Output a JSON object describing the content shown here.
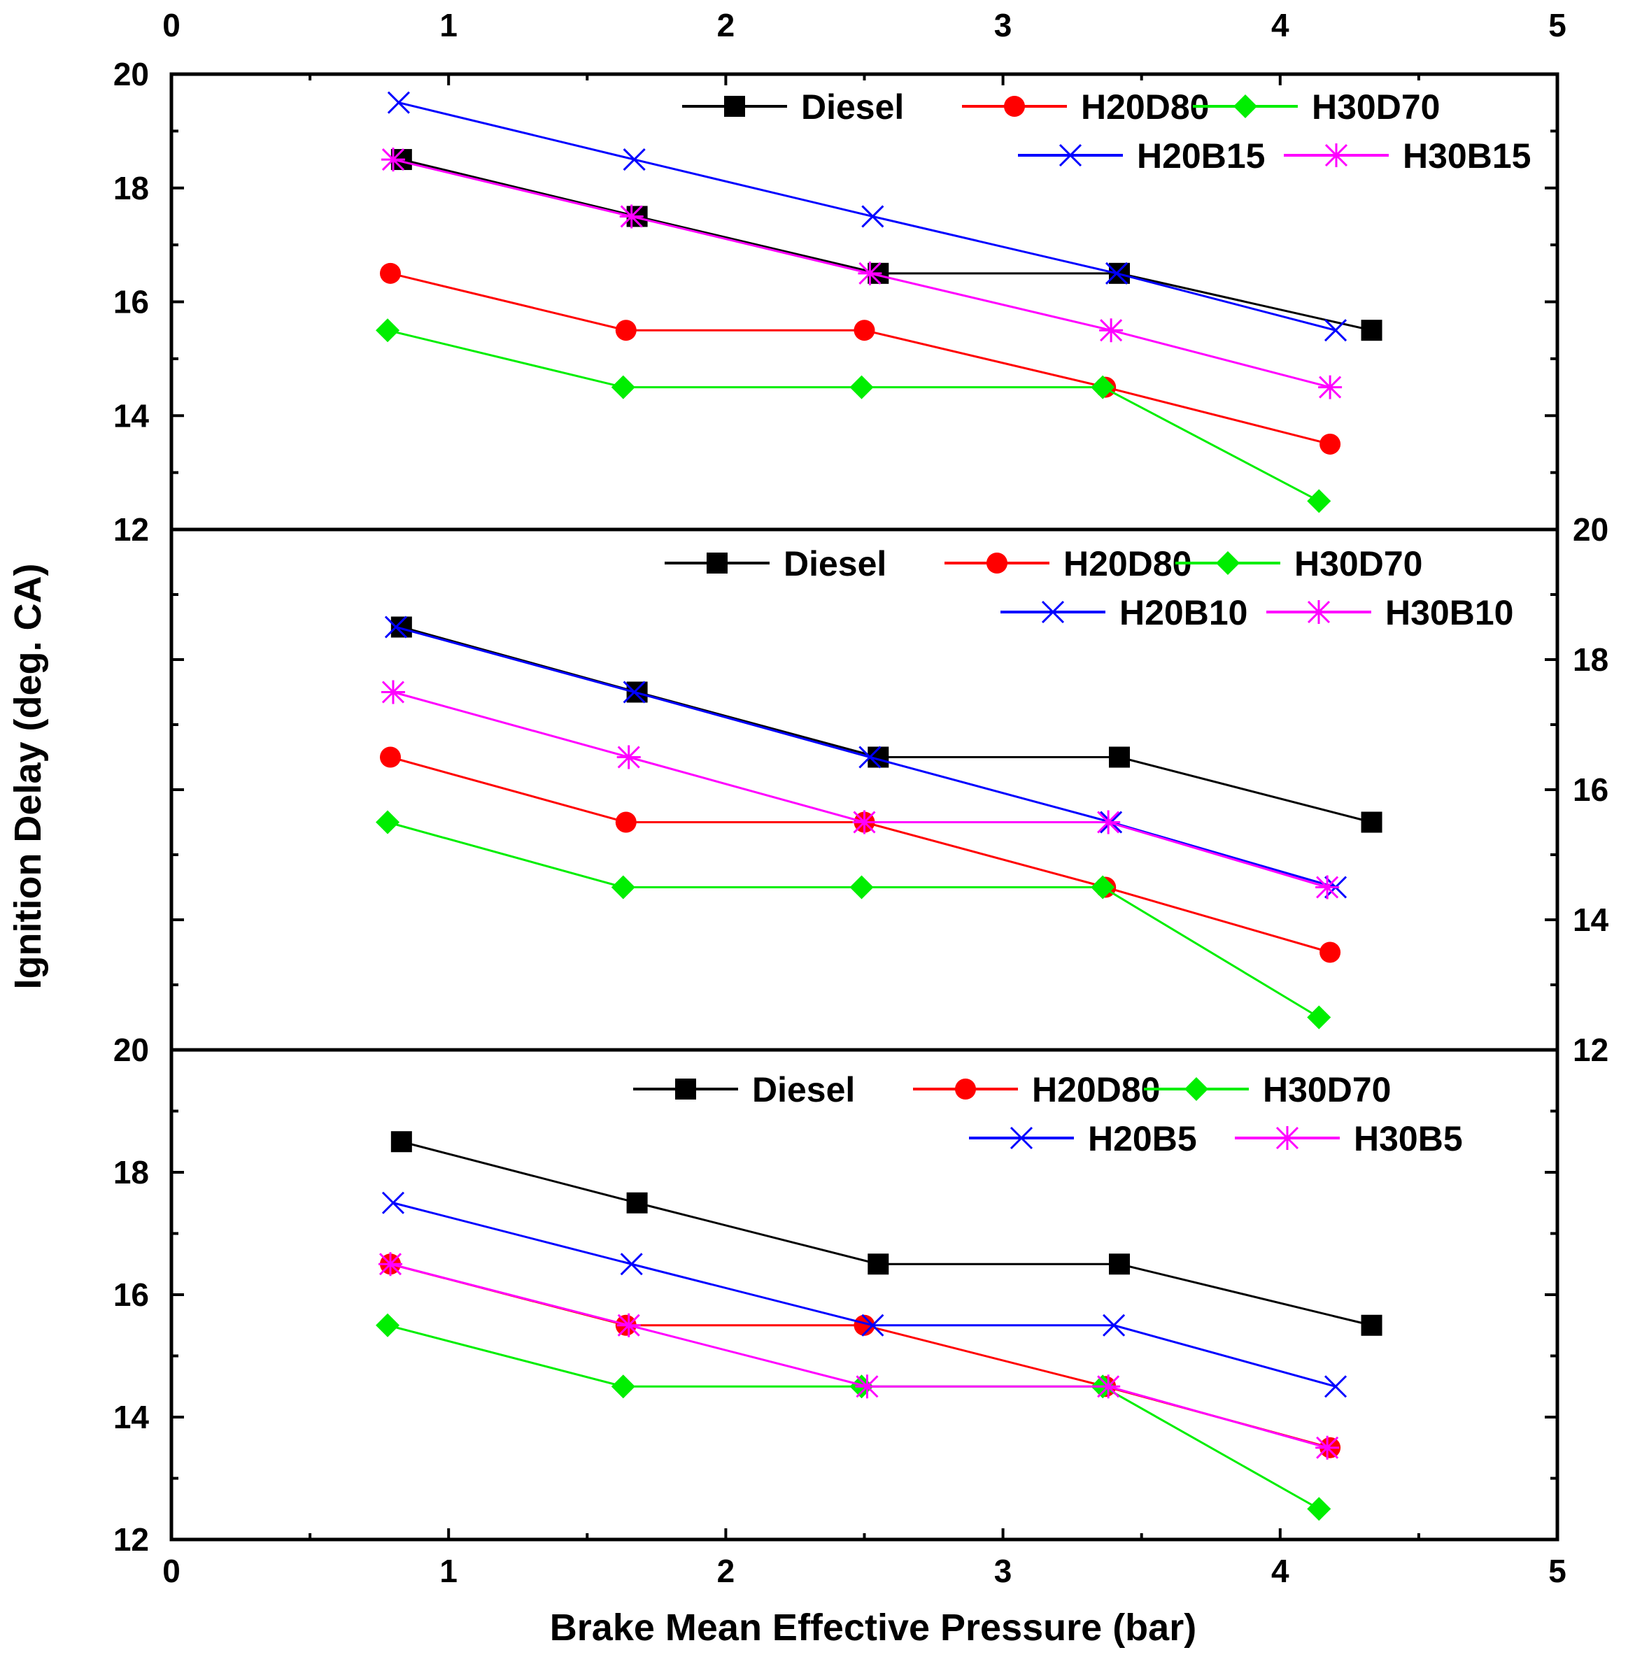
{
  "chart_data": {
    "type": "line",
    "xlabel": "Brake Mean Effective Pressure (bar)",
    "ylabel": "Ignition Delay (deg. CA)",
    "xlim": [
      0,
      5
    ],
    "x_ticks": [
      "0",
      "1",
      "2",
      "3",
      "4",
      "5"
    ],
    "ylim": [
      12,
      20
    ],
    "y_ticks": [
      "12",
      "14",
      "16",
      "18",
      "20"
    ],
    "panels": [
      {
        "name": "B15",
        "y_axis_side": "left",
        "series": [
          {
            "name": "Diesel",
            "color": "#000000",
            "marker": "square",
            "x": [
              0.83,
              1.68,
              2.55,
              3.42,
              4.33
            ],
            "y": [
              18.5,
              17.5,
              16.5,
              16.5,
              15.5
            ]
          },
          {
            "name": "H20D80",
            "color": "#ff0000",
            "marker": "circle",
            "x": [
              0.79,
              1.64,
              2.5,
              3.37,
              4.18
            ],
            "y": [
              16.5,
              15.5,
              15.5,
              14.5,
              13.5
            ]
          },
          {
            "name": "H30D70",
            "color": "#00ee00",
            "marker": "diamond",
            "x": [
              0.78,
              1.63,
              2.49,
              3.36,
              4.14
            ],
            "y": [
              15.5,
              14.5,
              14.5,
              14.5,
              12.5
            ]
          },
          {
            "name": "H20B15",
            "color": "#0000ff",
            "marker": "x",
            "x": [
              0.82,
              1.67,
              2.53,
              3.41,
              4.2
            ],
            "y": [
              19.5,
              18.5,
              17.5,
              16.5,
              15.5
            ]
          },
          {
            "name": "H30B15",
            "color": "#ff00ff",
            "marker": "star",
            "x": [
              0.8,
              1.66,
              2.52,
              3.39,
              4.18
            ],
            "y": [
              18.5,
              17.5,
              16.5,
              15.5,
              14.5
            ]
          }
        ]
      },
      {
        "name": "B10",
        "y_axis_side": "right",
        "series": [
          {
            "name": "Diesel",
            "color": "#000000",
            "marker": "square",
            "x": [
              0.83,
              1.68,
              2.55,
              3.42,
              4.33
            ],
            "y": [
              18.5,
              17.5,
              16.5,
              16.5,
              15.5
            ]
          },
          {
            "name": "H20D80",
            "color": "#ff0000",
            "marker": "circle",
            "x": [
              0.79,
              1.64,
              2.5,
              3.37,
              4.18
            ],
            "y": [
              16.5,
              15.5,
              15.5,
              14.5,
              13.5
            ]
          },
          {
            "name": "H30D70",
            "color": "#00ee00",
            "marker": "diamond",
            "x": [
              0.78,
              1.63,
              2.49,
              3.36,
              4.14
            ],
            "y": [
              15.5,
              14.5,
              14.5,
              14.5,
              12.5
            ]
          },
          {
            "name": "H20B10",
            "color": "#0000ff",
            "marker": "x",
            "x": [
              0.81,
              1.67,
              2.52,
              3.39,
              4.2
            ],
            "y": [
              18.5,
              17.5,
              16.5,
              15.5,
              14.5
            ]
          },
          {
            "name": "H30B10",
            "color": "#ff00ff",
            "marker": "star",
            "x": [
              0.8,
              1.65,
              2.5,
              3.38,
              4.17
            ],
            "y": [
              17.5,
              16.5,
              15.5,
              15.5,
              14.5
            ]
          }
        ]
      },
      {
        "name": "B5",
        "y_axis_side": "left",
        "series": [
          {
            "name": "Diesel",
            "color": "#000000",
            "marker": "square",
            "x": [
              0.83,
              1.68,
              2.55,
              3.42,
              4.33
            ],
            "y": [
              18.5,
              17.5,
              16.5,
              16.5,
              15.5
            ]
          },
          {
            "name": "H20D80",
            "color": "#ff0000",
            "marker": "circle",
            "x": [
              0.79,
              1.64,
              2.5,
              3.37,
              4.18
            ],
            "y": [
              16.5,
              15.5,
              15.5,
              14.5,
              13.5
            ]
          },
          {
            "name": "H30D70",
            "color": "#00ee00",
            "marker": "diamond",
            "x": [
              0.78,
              1.63,
              2.49,
              3.36,
              4.14
            ],
            "y": [
              15.5,
              14.5,
              14.5,
              14.5,
              12.5
            ]
          },
          {
            "name": "H20B5",
            "color": "#0000ff",
            "marker": "x",
            "x": [
              0.8,
              1.66,
              2.53,
              3.4,
              4.2
            ],
            "y": [
              17.5,
              16.5,
              15.5,
              15.5,
              14.5
            ]
          },
          {
            "name": "H30B5",
            "color": "#ff00ff",
            "marker": "star",
            "x": [
              0.79,
              1.65,
              2.51,
              3.38,
              4.17
            ],
            "y": [
              16.5,
              15.5,
              14.5,
              14.5,
              13.5
            ]
          }
        ]
      }
    ]
  }
}
